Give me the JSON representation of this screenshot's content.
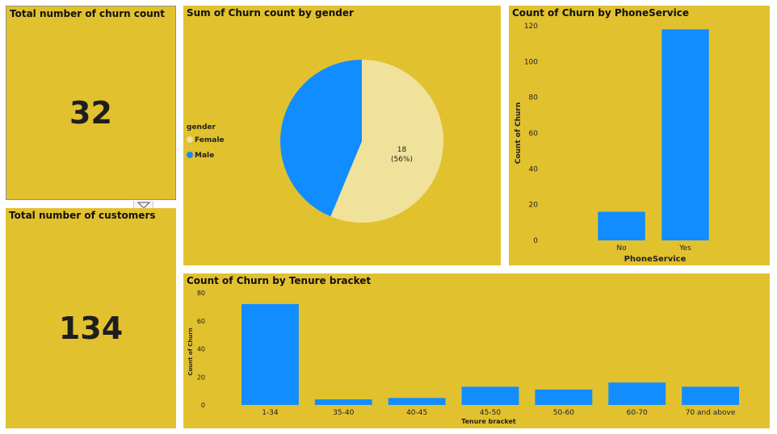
{
  "kpi_churn": {
    "title": "Total number of churn count",
    "value": "32"
  },
  "kpi_customers": {
    "title": "Total number of customers",
    "value": "134"
  },
  "colors": {
    "tile": "#E2C12F",
    "male": "#118DFF",
    "female": "#F0E29A",
    "bar": "#118DFF"
  },
  "filter_icon": "filter-icon",
  "chart_data": [
    {
      "type": "pie",
      "title": "Sum of Churn count by gender",
      "legend_title": "gender",
      "legend_position": "left",
      "slices": [
        {
          "name": "Female",
          "value": 18,
          "label": "18",
          "pct_label": "(56%)"
        },
        {
          "name": "Male",
          "value": 14
        }
      ]
    },
    {
      "type": "bar",
      "title": "Count of Churn by PhoneService",
      "xlabel": "PhoneService",
      "ylabel": "Count of Churn",
      "categories": [
        "No",
        "Yes"
      ],
      "values": [
        16,
        118
      ],
      "ylim": [
        0,
        120
      ],
      "yticks": [
        0,
        20,
        40,
        60,
        80,
        100,
        120
      ],
      "grid": false
    },
    {
      "type": "bar",
      "title": "Count of Churn by Tenure bracket",
      "xlabel": "Tenure bracket",
      "ylabel": "Count of Churn",
      "categories": [
        "1-34",
        "35-40",
        "40-45",
        "45-50",
        "50-60",
        "60-70",
        "70 and above"
      ],
      "values": [
        72,
        4,
        5,
        13,
        11,
        16,
        13
      ],
      "ylim": [
        0,
        80
      ],
      "yticks": [
        0,
        20,
        40,
        60,
        80
      ],
      "grid": false
    }
  ]
}
